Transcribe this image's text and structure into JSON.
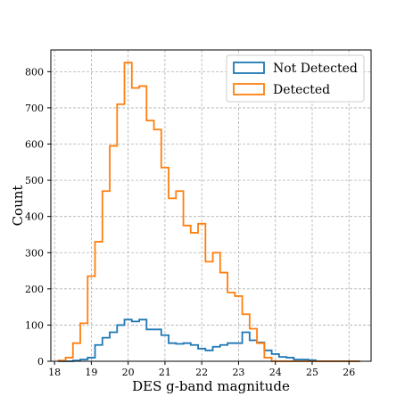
{
  "chart_data": {
    "type": "histogram",
    "xlabel": "DES g-band magnitude",
    "ylabel": "Count",
    "xlim": [
      17.9,
      26.6
    ],
    "ylim": [
      0,
      860
    ],
    "xticks": [
      18,
      19,
      20,
      21,
      22,
      23,
      24,
      25,
      26
    ],
    "yticks": [
      0,
      100,
      200,
      300,
      400,
      500,
      600,
      700,
      800
    ],
    "grid": true,
    "legend_position": "top-right",
    "bin_edges": [
      18.1,
      18.3,
      18.5,
      18.7,
      18.9,
      19.1,
      19.3,
      19.5,
      19.7,
      19.9,
      20.1,
      20.3,
      20.5,
      20.7,
      20.9,
      21.1,
      21.3,
      21.5,
      21.7,
      21.9,
      22.1,
      22.3,
      22.5,
      22.7,
      22.9,
      23.1,
      23.3,
      23.5,
      23.7,
      23.9,
      24.1,
      24.3,
      24.5,
      24.7,
      24.9,
      25.1,
      25.3,
      25.5,
      25.7,
      25.9,
      26.1,
      26.3
    ],
    "series": [
      {
        "name": "Not Detected",
        "color": "#1f77b4",
        "values": [
          0,
          0,
          2,
          5,
          10,
          45,
          65,
          80,
          100,
          115,
          110,
          115,
          88,
          88,
          72,
          50,
          48,
          50,
          45,
          35,
          30,
          40,
          45,
          50,
          50,
          80,
          58,
          52,
          30,
          20,
          12,
          10,
          5,
          5,
          3,
          0,
          0,
          0,
          0,
          0,
          0
        ]
      },
      {
        "name": "Detected",
        "color": "#ff7f0e",
        "values": [
          2,
          10,
          50,
          105,
          235,
          330,
          470,
          595,
          710,
          825,
          755,
          760,
          665,
          640,
          535,
          450,
          470,
          375,
          355,
          380,
          275,
          300,
          245,
          190,
          180,
          130,
          90,
          50,
          10,
          0,
          0,
          0,
          0,
          0,
          0,
          0,
          0,
          0,
          0,
          0,
          0
        ]
      }
    ]
  }
}
